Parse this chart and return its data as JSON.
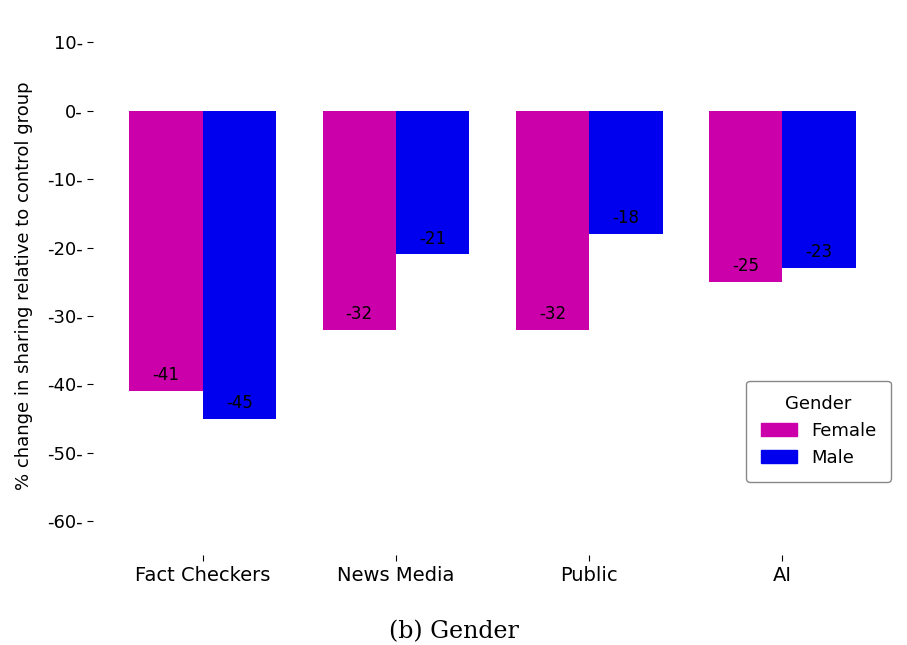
{
  "categories": [
    "Fact Checkers",
    "News Media",
    "Public",
    "AI"
  ],
  "female_values": [
    -41,
    -32,
    -32,
    -25
  ],
  "male_values": [
    -45,
    -21,
    -18,
    -23
  ],
  "female_color": "#CC00AA",
  "male_color": "#0000EE",
  "ylabel": "% change in sharing relative to control group",
  "xlabel": "(b) Gender",
  "ylim": [
    -65,
    14
  ],
  "yticks": [
    10,
    0,
    -10,
    -20,
    -30,
    -40,
    -50,
    -60
  ],
  "ytick_labels": [
    "10-",
    "0-",
    "-10-",
    "-20-",
    "-30-",
    "-40-",
    "-50-",
    "-60-"
  ],
  "legend_title": "Gender",
  "legend_labels": [
    "Female",
    "Male"
  ],
  "bar_width": 0.38,
  "background_color": "#FFFFFF",
  "label_fontsize": 14,
  "tick_fontsize": 13,
  "xlabel_fontsize": 17,
  "ylabel_fontsize": 13,
  "legend_fontsize": 13,
  "annotation_fontsize": 12
}
